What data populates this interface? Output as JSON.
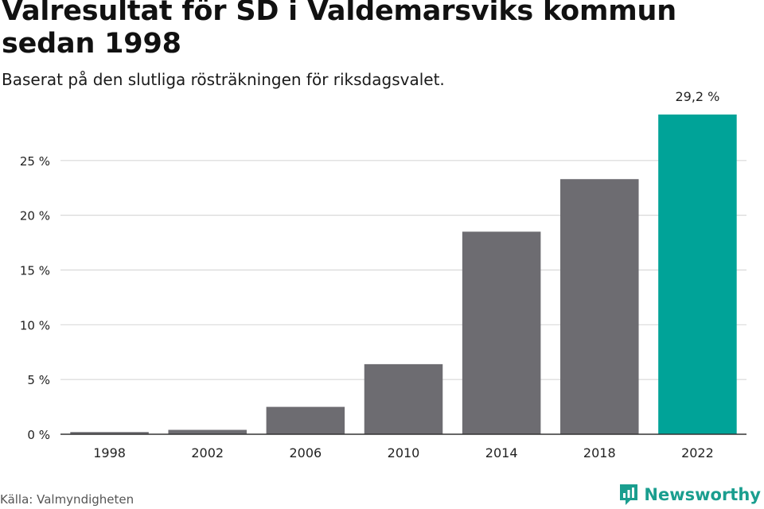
{
  "header": {
    "title": "Valresultat för SD i Valdemarsviks kommun sedan 1998",
    "subtitle": "Baserat på den slutliga rösträkningen för riksdagsvalet."
  },
  "footer": {
    "source": "Källa: Valmyndigheten",
    "brand": "Newsworthy",
    "brand_icon": "newsworthy-logo-icon"
  },
  "colors": {
    "bar": "#6d6c71",
    "highlight": "#00a398",
    "grid": "#d9d9d9",
    "axis": "#333333",
    "brand": "#1a9e8f"
  },
  "chart_data": {
    "type": "bar",
    "categories": [
      "1998",
      "2002",
      "2006",
      "2010",
      "2014",
      "2018",
      "2022"
    ],
    "values": [
      0.2,
      0.4,
      2.5,
      6.4,
      18.5,
      23.3,
      29.2
    ],
    "highlight_index": 6,
    "data_labels": [
      {
        "index": 6,
        "text": "29,2 %"
      }
    ],
    "yticks": [
      {
        "value": 0,
        "label": "0 %"
      },
      {
        "value": 5,
        "label": "5 %"
      },
      {
        "value": 10,
        "label": "10 %"
      },
      {
        "value": 15,
        "label": "15 %"
      },
      {
        "value": 20,
        "label": "20 %"
      },
      {
        "value": 25,
        "label": "25 %"
      }
    ],
    "ylim": [
      0,
      29.2
    ],
    "grid": true,
    "xlabel": "",
    "ylabel": ""
  }
}
